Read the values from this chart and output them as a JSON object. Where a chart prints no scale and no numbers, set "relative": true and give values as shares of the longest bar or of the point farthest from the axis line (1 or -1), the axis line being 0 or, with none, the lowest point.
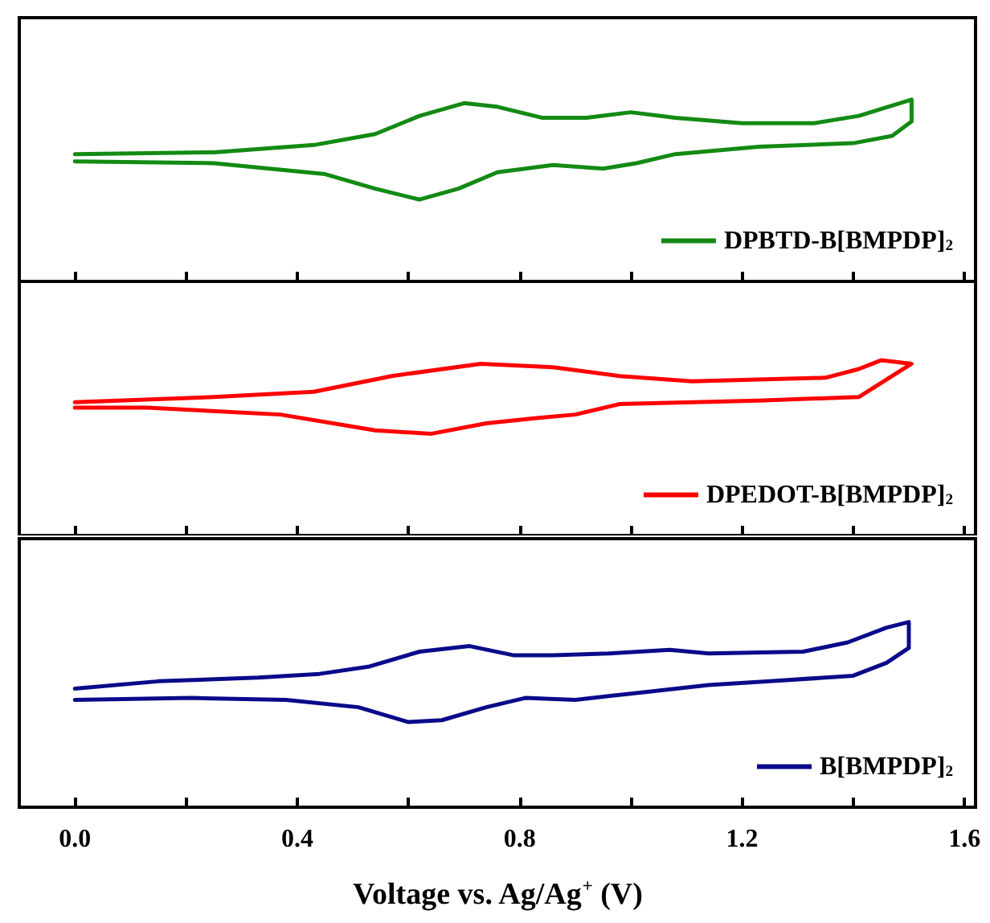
{
  "chart_data": [
    {
      "type": "line",
      "relative": true,
      "xlim": [
        -0.1,
        1.62
      ],
      "xticks": [
        0,
        0.2,
        0.4,
        0.6,
        0.8,
        1.0,
        1.2,
        1.4,
        1.6
      ],
      "tick_labels": false,
      "legend": "bottom right",
      "marker": "none",
      "line_style": "solid",
      "grid": false,
      "series": [
        {
          "name": "DPBTD-B[BMPDP]$_{2}$",
          "color": "#138a13",
          "x": [
            0,
            0.25,
            0.43,
            0.54,
            0.62,
            0.7,
            0.76,
            0.84,
            0.92,
            1.0,
            1.08,
            1.2,
            1.33,
            1.41,
            1.505,
            1.505,
            1.47,
            1.4,
            1.23,
            1.08,
            1.01,
            0.95,
            0.86,
            0.76,
            0.69,
            0.62,
            0.54,
            0.45,
            0.25,
            0
          ],
          "values": [
            0.7,
            0.71,
            0.75,
            0.81,
            0.91,
            0.98,
            0.96,
            0.9,
            0.9,
            0.93,
            0.9,
            0.87,
            0.87,
            0.91,
            1,
            0.88,
            0.8,
            0.76,
            0.74,
            0.7,
            0.65,
            0.62,
            0.64,
            0.6,
            0.51,
            0.45,
            0.51,
            0.59,
            0.65,
            0.66
          ]
        }
      ]
    },
    {
      "type": "line",
      "relative": true,
      "xlim": [
        -0.1,
        1.62
      ],
      "xticks": [
        0,
        0.2,
        0.4,
        0.6,
        0.8,
        1.0,
        1.2,
        1.4,
        1.6
      ],
      "tick_labels": false,
      "legend": "bottom right",
      "marker": "none",
      "line_style": "solid",
      "grid": false,
      "series": [
        {
          "name": "DPEDOT-B[BMPDP]$_{2}$",
          "color": "#ff0000",
          "x": [
            0,
            0.25,
            0.43,
            0.57,
            0.73,
            0.86,
            0.98,
            1.11,
            1.35,
            1.41,
            1.45,
            1.505,
            1.47,
            1.41,
            1.23,
            0.98,
            0.9,
            0.83,
            0.74,
            0.64,
            0.54,
            0.37,
            0.13,
            0
          ],
          "values": [
            0.76,
            0.79,
            0.82,
            0.91,
            0.98,
            0.96,
            0.91,
            0.88,
            0.9,
            0.95,
            1,
            0.98,
            0.91,
            0.79,
            0.77,
            0.75,
            0.69,
            0.67,
            0.64,
            0.58,
            0.6,
            0.69,
            0.73,
            0.73
          ]
        }
      ]
    },
    {
      "type": "line",
      "relative": true,
      "xlim": [
        -0.1,
        1.62
      ],
      "xticks": [
        {
          "value": 0,
          "label": "0.0"
        },
        {
          "value": 0.2,
          "label": null
        },
        0.4,
        {
          "value": 0.6,
          "label": null
        },
        0.8,
        {
          "value": 1.0,
          "label": null
        },
        1.2,
        {
          "value": 1.4,
          "label": null
        },
        1.6
      ],
      "tick_labels": "x",
      "legend": "bottom right",
      "marker": "none",
      "line_style": "solid",
      "grid": false,
      "xlabel": "Voltage vs. Ag/Ag$^{+}$ (V)",
      "series": [
        {
          "name": "B[BMPDP]$_{2}$",
          "color": "#0a0a8a",
          "x": [
            0,
            0.15,
            0.33,
            0.44,
            0.53,
            0.62,
            0.71,
            0.79,
            0.86,
            0.96,
            1.07,
            1.14,
            1.31,
            1.39,
            1.46,
            1.5,
            1.5,
            1.46,
            1.4,
            1.25,
            1.14,
            1.02,
            0.9,
            0.81,
            0.74,
            0.66,
            0.6,
            0.51,
            0.38,
            0.21,
            0
          ],
          "values": [
            0.64,
            0.68,
            0.7,
            0.72,
            0.76,
            0.84,
            0.87,
            0.82,
            0.82,
            0.83,
            0.85,
            0.83,
            0.84,
            0.89,
            0.97,
            1,
            0.86,
            0.78,
            0.71,
            0.68,
            0.66,
            0.62,
            0.58,
            0.59,
            0.54,
            0.47,
            0.46,
            0.54,
            0.58,
            0.59,
            0.58
          ]
        }
      ]
    }
  ]
}
